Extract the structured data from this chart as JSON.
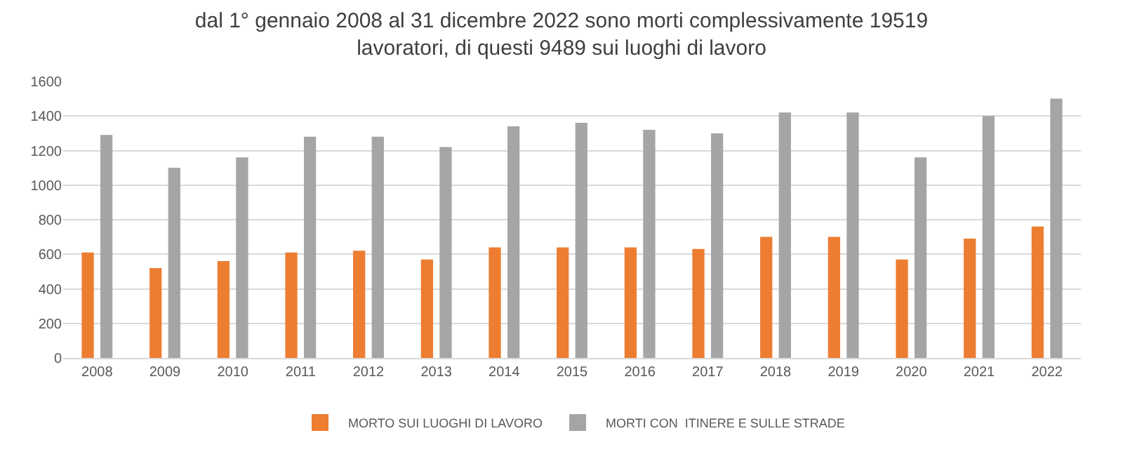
{
  "chart_data": {
    "type": "bar",
    "title": "dal 1° gennaio 2008 al 31 dicembre 2022 sono morti complessivamente 19519\nlavoratori, di questi 9489 sui luoghi di lavoro",
    "categories": [
      "2008",
      "2009",
      "2010",
      "2011",
      "2012",
      "2013",
      "2014",
      "2015",
      "2016",
      "2017",
      "2018",
      "2019",
      "2020",
      "2021",
      "2022"
    ],
    "series": [
      {
        "name": "MORTO SUI LUOGHI DI LAVORO",
        "color": "#ed7d31",
        "values": [
          610,
          520,
          560,
          610,
          620,
          570,
          640,
          640,
          640,
          630,
          700,
          700,
          570,
          690,
          760
        ]
      },
      {
        "name": "MORTI CON  ITINERE E SULLE STRADE",
        "color": "#a5a5a5",
        "values": [
          1290,
          1100,
          1160,
          1280,
          1280,
          1220,
          1340,
          1360,
          1320,
          1300,
          1420,
          1420,
          1160,
          1400,
          1500
        ]
      }
    ],
    "ylim": [
      0,
      1600
    ],
    "yticks": [
      0,
      200,
      400,
      600,
      800,
      1000,
      1200,
      1400,
      1600
    ],
    "grid": "y",
    "legend": "bottom"
  }
}
